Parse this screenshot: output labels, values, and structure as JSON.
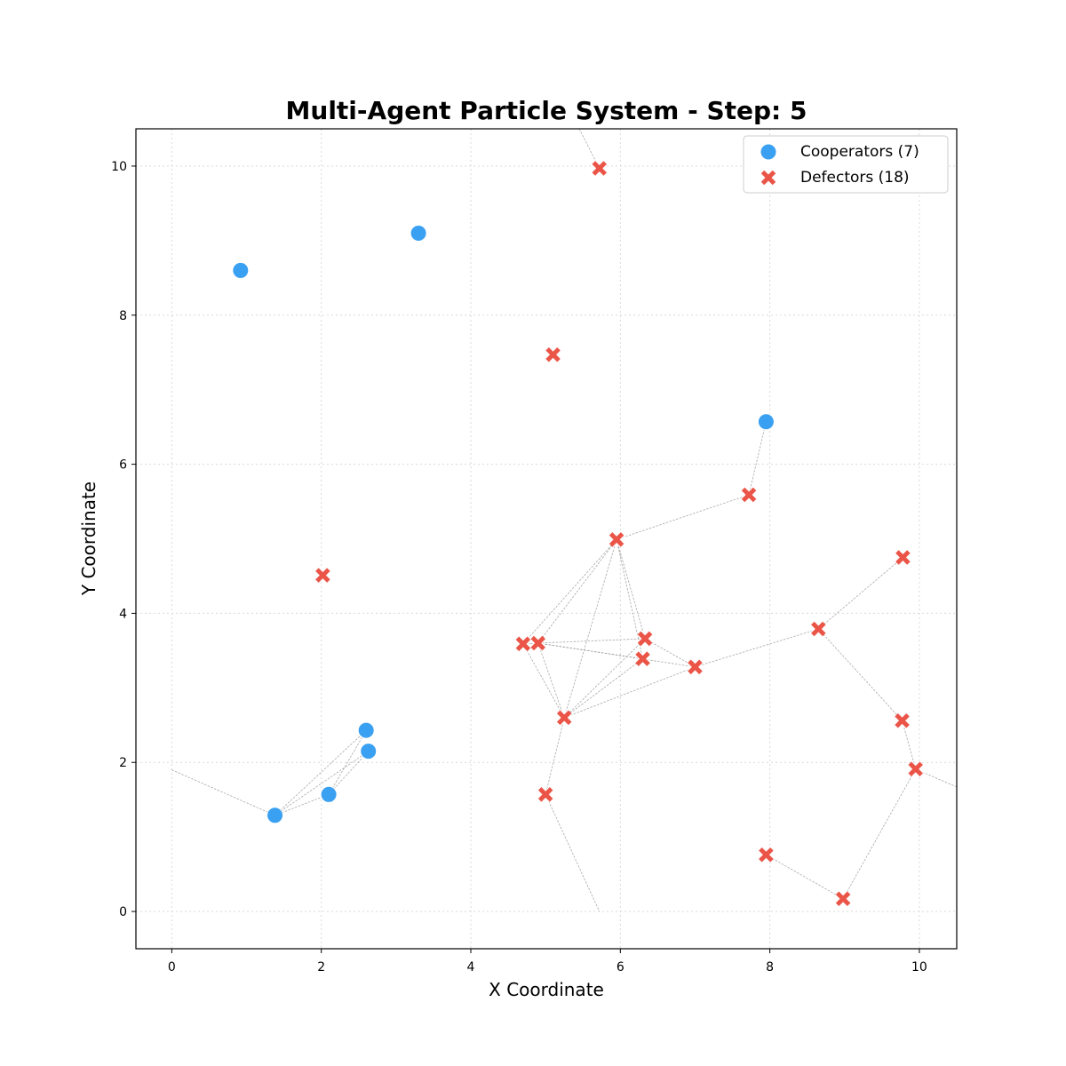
{
  "chart_data": {
    "type": "scatter",
    "title": "Multi-Agent Particle System - Step: 5",
    "xlabel": "X Coordinate",
    "ylabel": "Y Coordinate",
    "xlim": [
      -0.48,
      10.5
    ],
    "ylim": [
      -0.5,
      10.5
    ],
    "xticks": [
      0,
      2,
      4,
      6,
      8,
      10
    ],
    "yticks": [
      0,
      2,
      4,
      6,
      8,
      10
    ],
    "grid": true,
    "legend_position": "top-right",
    "series": [
      {
        "name": "Cooperators (7)",
        "marker": "circle",
        "color": "#3aa0f2",
        "points": [
          {
            "id": "c1",
            "x": 0.92,
            "y": 8.6
          },
          {
            "id": "c2",
            "x": 3.3,
            "y": 9.1
          },
          {
            "id": "c3",
            "x": 7.95,
            "y": 6.57
          },
          {
            "id": "c4",
            "x": 2.6,
            "y": 2.43
          },
          {
            "id": "c5",
            "x": 2.63,
            "y": 2.15
          },
          {
            "id": "c6",
            "x": 2.1,
            "y": 1.57
          },
          {
            "id": "c7",
            "x": 1.38,
            "y": 1.29
          }
        ]
      },
      {
        "name": "Defectors (18)",
        "marker": "x",
        "color": "#ea5548",
        "points": [
          {
            "id": "d1",
            "x": 5.72,
            "y": 9.97
          },
          {
            "id": "d2",
            "x": 5.1,
            "y": 7.47
          },
          {
            "id": "d3",
            "x": 7.72,
            "y": 5.59
          },
          {
            "id": "d4",
            "x": 5.95,
            "y": 4.99
          },
          {
            "id": "d5",
            "x": 2.02,
            "y": 4.51
          },
          {
            "id": "d6",
            "x": 9.78,
            "y": 4.75
          },
          {
            "id": "d7",
            "x": 8.65,
            "y": 3.79
          },
          {
            "id": "d8",
            "x": 4.7,
            "y": 3.59
          },
          {
            "id": "d9",
            "x": 4.9,
            "y": 3.6
          },
          {
            "id": "d10",
            "x": 6.33,
            "y": 3.66
          },
          {
            "id": "d11",
            "x": 6.3,
            "y": 3.39
          },
          {
            "id": "d12",
            "x": 7.0,
            "y": 3.28
          },
          {
            "id": "d13",
            "x": 5.25,
            "y": 2.6
          },
          {
            "id": "d14",
            "x": 9.77,
            "y": 2.56
          },
          {
            "id": "d15",
            "x": 9.95,
            "y": 1.91
          },
          {
            "id": "d16",
            "x": 5.0,
            "y": 1.57
          },
          {
            "id": "d17",
            "x": 7.95,
            "y": 0.76
          },
          {
            "id": "d18",
            "x": 8.98,
            "y": 0.17
          }
        ]
      }
    ],
    "connections": [
      {
        "from": [
          0.0,
          1.9
        ],
        "to": [
          1.38,
          1.29
        ]
      },
      {
        "from": [
          1.38,
          1.29
        ],
        "to": [
          2.6,
          2.43
        ]
      },
      {
        "from": [
          1.38,
          1.29
        ],
        "to": [
          2.63,
          2.15
        ]
      },
      {
        "from": [
          1.38,
          1.29
        ],
        "to": [
          2.1,
          1.57
        ]
      },
      {
        "from": [
          2.1,
          1.57
        ],
        "to": [
          2.6,
          2.43
        ]
      },
      {
        "from": [
          2.1,
          1.57
        ],
        "to": [
          2.63,
          2.15
        ]
      },
      {
        "from": [
          5.45,
          10.5
        ],
        "to": [
          5.72,
          9.97
        ]
      },
      {
        "from": [
          7.95,
          6.57
        ],
        "to": [
          7.72,
          5.59
        ]
      },
      {
        "from": [
          7.72,
          5.59
        ],
        "to": [
          5.95,
          4.99
        ]
      },
      {
        "from": [
          5.95,
          4.99
        ],
        "to": [
          4.7,
          3.59
        ]
      },
      {
        "from": [
          5.95,
          4.99
        ],
        "to": [
          4.9,
          3.6
        ]
      },
      {
        "from": [
          5.95,
          4.99
        ],
        "to": [
          6.33,
          3.66
        ]
      },
      {
        "from": [
          5.95,
          4.99
        ],
        "to": [
          6.3,
          3.39
        ]
      },
      {
        "from": [
          5.95,
          4.99
        ],
        "to": [
          5.25,
          2.6
        ]
      },
      {
        "from": [
          4.7,
          3.59
        ],
        "to": [
          4.9,
          3.6
        ]
      },
      {
        "from": [
          4.7,
          3.59
        ],
        "to": [
          5.25,
          2.6
        ]
      },
      {
        "from": [
          4.9,
          3.6
        ],
        "to": [
          6.33,
          3.66
        ]
      },
      {
        "from": [
          4.9,
          3.6
        ],
        "to": [
          6.3,
          3.39
        ]
      },
      {
        "from": [
          4.9,
          3.6
        ],
        "to": [
          7.0,
          3.28
        ]
      },
      {
        "from": [
          4.9,
          3.6
        ],
        "to": [
          5.25,
          2.6
        ]
      },
      {
        "from": [
          6.33,
          3.66
        ],
        "to": [
          7.0,
          3.28
        ]
      },
      {
        "from": [
          6.33,
          3.66
        ],
        "to": [
          5.25,
          2.6
        ]
      },
      {
        "from": [
          6.3,
          3.39
        ],
        "to": [
          5.25,
          2.6
        ]
      },
      {
        "from": [
          7.0,
          3.28
        ],
        "to": [
          8.65,
          3.79
        ]
      },
      {
        "from": [
          7.0,
          3.28
        ],
        "to": [
          5.25,
          2.6
        ]
      },
      {
        "from": [
          5.25,
          2.6
        ],
        "to": [
          5.0,
          1.57
        ]
      },
      {
        "from": [
          5.0,
          1.57
        ],
        "to": [
          5.72,
          0.0
        ]
      },
      {
        "from": [
          8.65,
          3.79
        ],
        "to": [
          9.78,
          4.75
        ]
      },
      {
        "from": [
          8.65,
          3.79
        ],
        "to": [
          9.77,
          2.56
        ]
      },
      {
        "from": [
          9.77,
          2.56
        ],
        "to": [
          9.95,
          1.91
        ]
      },
      {
        "from": [
          9.95,
          1.91
        ],
        "to": [
          10.5,
          1.67
        ]
      },
      {
        "from": [
          9.95,
          1.91
        ],
        "to": [
          8.98,
          0.17
        ]
      },
      {
        "from": [
          7.95,
          0.76
        ],
        "to": [
          8.98,
          0.17
        ]
      }
    ]
  }
}
